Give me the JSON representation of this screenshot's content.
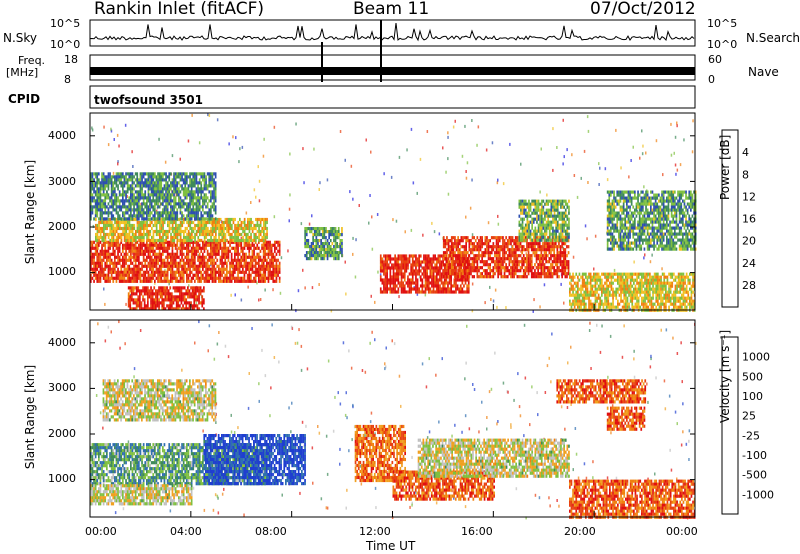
{
  "header": {
    "station": "Rankin Inlet (fitACF)",
    "beam": "Beam 11",
    "date": "07/Oct/2012"
  },
  "panels": {
    "nsky": {
      "label": "N.Sky",
      "top_tick": "10^5",
      "bottom_tick": "10^0",
      "right_label": "N.Search",
      "right_top": "10^5",
      "right_bottom": "10^0"
    },
    "freq": {
      "label_line1": "Freq.",
      "label_line2": "[MHz]",
      "top_tick": "18",
      "bottom_tick": "8",
      "right_top": "60",
      "right_bottom": "0",
      "right_label": "Nave"
    },
    "cpid": {
      "label": "CPID",
      "value": "twofsound 3501"
    }
  },
  "chart_data": [
    {
      "type": "heatmap",
      "name": "power",
      "xlabel": "",
      "ylabel": "Slant Range [km]",
      "xlim": [
        "00:00",
        "24:00"
      ],
      "ylim": [
        180,
        4500
      ],
      "yticks": [
        "1000",
        "2000",
        "3000",
        "4000"
      ],
      "colorbar": {
        "label": "Power [dB]",
        "ticks": [
          "4",
          "8",
          "12",
          "16",
          "20",
          "24",
          "28"
        ],
        "colors": [
          "#1f1fe0",
          "#2d4fb0",
          "#3f8a5a",
          "#7fc040",
          "#f0c020",
          "#f08010",
          "#e84010",
          "#e01010"
        ]
      },
      "regions": [
        {
          "t0": 0.0,
          "t1": 7.5,
          "r0": 800,
          "r1": 1700,
          "level": 0.85
        },
        {
          "t0": 0.2,
          "t1": 7.0,
          "r0": 1700,
          "r1": 2200,
          "level": 0.55
        },
        {
          "t0": 0.0,
          "t1": 5.0,
          "r0": 2200,
          "r1": 3200,
          "level": 0.3
        },
        {
          "t0": 1.5,
          "t1": 4.5,
          "r0": 200,
          "r1": 700,
          "level": 0.9
        },
        {
          "t0": 8.5,
          "t1": 10.0,
          "r0": 1300,
          "r1": 2000,
          "level": 0.35
        },
        {
          "t0": 11.5,
          "t1": 15.0,
          "r0": 600,
          "r1": 1400,
          "level": 0.9
        },
        {
          "t0": 14.0,
          "t1": 19.0,
          "r0": 900,
          "r1": 1800,
          "level": 0.85
        },
        {
          "t0": 17.0,
          "t1": 19.0,
          "r0": 1700,
          "r1": 2600,
          "level": 0.4
        },
        {
          "t0": 19.0,
          "t1": 24.0,
          "r0": 200,
          "r1": 1000,
          "level": 0.55
        },
        {
          "t0": 20.5,
          "t1": 24.0,
          "r0": 1500,
          "r1": 2800,
          "level": 0.35
        }
      ]
    },
    {
      "type": "heatmap",
      "name": "velocity",
      "xlabel": "Time UT",
      "ylabel": "Slant Range [km]",
      "xlim": [
        "00:00",
        "24:00"
      ],
      "ylim": [
        180,
        4500
      ],
      "xticks": [
        "00:00",
        "04:00",
        "08:00",
        "12:00",
        "16:00",
        "20:00",
        "00:00"
      ],
      "yticks": [
        "1000",
        "2000",
        "3000",
        "4000"
      ],
      "colorbar": {
        "label": "Velocity [m s⁻¹]",
        "ticks": [
          "1000",
          "500",
          "100",
          "25",
          "-25",
          "-100",
          "-500",
          "-1000"
        ],
        "colors": [
          "#1f3fd0",
          "#2f6fb0",
          "#3f8a5a",
          "#7fc040",
          "#c0c0c0",
          "#f0a020",
          "#f08010",
          "#e84010",
          "#e01010"
        ]
      },
      "regions": [
        {
          "t0": 0.0,
          "t1": 7.0,
          "r0": 900,
          "r1": 1800,
          "level": 0.3
        },
        {
          "t0": 4.5,
          "t1": 8.5,
          "r0": 900,
          "r1": 2000,
          "level": 0.05
        },
        {
          "t0": 0.5,
          "t1": 5.0,
          "r0": 2300,
          "r1": 3200,
          "level": 0.5
        },
        {
          "t0": 0.0,
          "t1": 4.0,
          "r0": 500,
          "r1": 900,
          "level": 0.5
        },
        {
          "t0": 10.5,
          "t1": 12.5,
          "r0": 1000,
          "r1": 2200,
          "level": 0.75
        },
        {
          "t0": 12.0,
          "t1": 16.0,
          "r0": 600,
          "r1": 1200,
          "level": 0.8
        },
        {
          "t0": 13.0,
          "t1": 19.0,
          "r0": 1100,
          "r1": 1900,
          "level": 0.5
        },
        {
          "t0": 19.0,
          "t1": 24.0,
          "r0": 200,
          "r1": 1000,
          "level": 0.8
        },
        {
          "t0": 20.5,
          "t1": 22.0,
          "r0": 2100,
          "r1": 2600,
          "level": 0.8
        },
        {
          "t0": 18.5,
          "t1": 22.0,
          "r0": 2700,
          "r1": 3200,
          "level": 0.8
        }
      ]
    }
  ]
}
